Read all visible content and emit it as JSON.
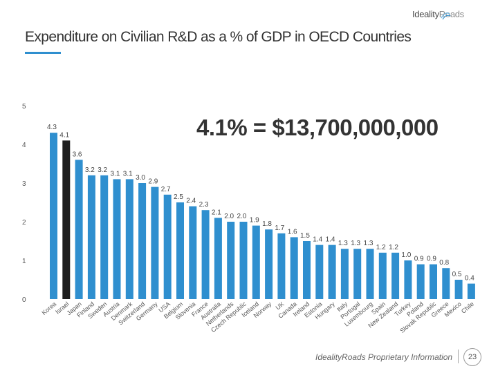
{
  "header": {
    "logo_text_a": "Ideality",
    "logo_text_b": "Roads",
    "title": "Expenditure on Civilian R&D as a % of GDP in OECD Countries",
    "accent_color": "#2f8fcf"
  },
  "callout": "4.1% = $13,700,000,000",
  "footer": {
    "proprietary": "IdealityRoads Proprietary Information",
    "page_number": "23"
  },
  "chart_data": {
    "type": "bar",
    "title": "",
    "xlabel": "",
    "ylabel": "",
    "ylim": [
      0,
      5
    ],
    "yticks": [
      "0",
      "1",
      "2",
      "3",
      "4",
      "5"
    ],
    "grid": false,
    "bar_color": "#2f8fcf",
    "highlight_color": "#1e1e1e",
    "highlight_category": "Israel",
    "categories": [
      "Korea",
      "Israel",
      "Japan",
      "Finland",
      "Sweden",
      "Austria",
      "Denmark",
      "Switzerland",
      "Germany",
      "USA",
      "Belgium",
      "Slovenia",
      "France",
      "Australia",
      "Netherlands",
      "Czech Republic",
      "Iceland",
      "Norway",
      "UK",
      "Canada",
      "Ireland",
      "Estonia",
      "Hungary",
      "Italy",
      "Portugal",
      "Luxembourg",
      "Spain",
      "New Zealand",
      "Turkey",
      "Poland",
      "Slovak Republic",
      "Greece",
      "Mexico",
      "Chile"
    ],
    "values": [
      4.3,
      4.1,
      3.6,
      3.2,
      3.2,
      3.1,
      3.1,
      3.0,
      2.9,
      2.7,
      2.5,
      2.4,
      2.3,
      2.1,
      2.0,
      2.0,
      1.9,
      1.8,
      1.7,
      1.6,
      1.5,
      1.4,
      1.4,
      1.3,
      1.3,
      1.3,
      1.2,
      1.2,
      1.0,
      0.9,
      0.9,
      0.8,
      0.5,
      0.4
    ],
    "value_labels": [
      "4.3",
      "4.1",
      "3.6",
      "3.2",
      "3.2",
      "3.1",
      "3.1",
      "3.0",
      "2.9",
      "2.7",
      "2.5",
      "2.4",
      "2.3",
      "2.1",
      "2.0",
      "2.0",
      "1.9",
      "1.8",
      "1.7",
      "1.6",
      "1.5",
      "1.4",
      "1.4",
      "1.3",
      "1.3",
      "1.3",
      "1.2",
      "1.2",
      "1.0",
      "0.9",
      "0.9",
      "0.8",
      "0.5",
      "0.4"
    ]
  }
}
